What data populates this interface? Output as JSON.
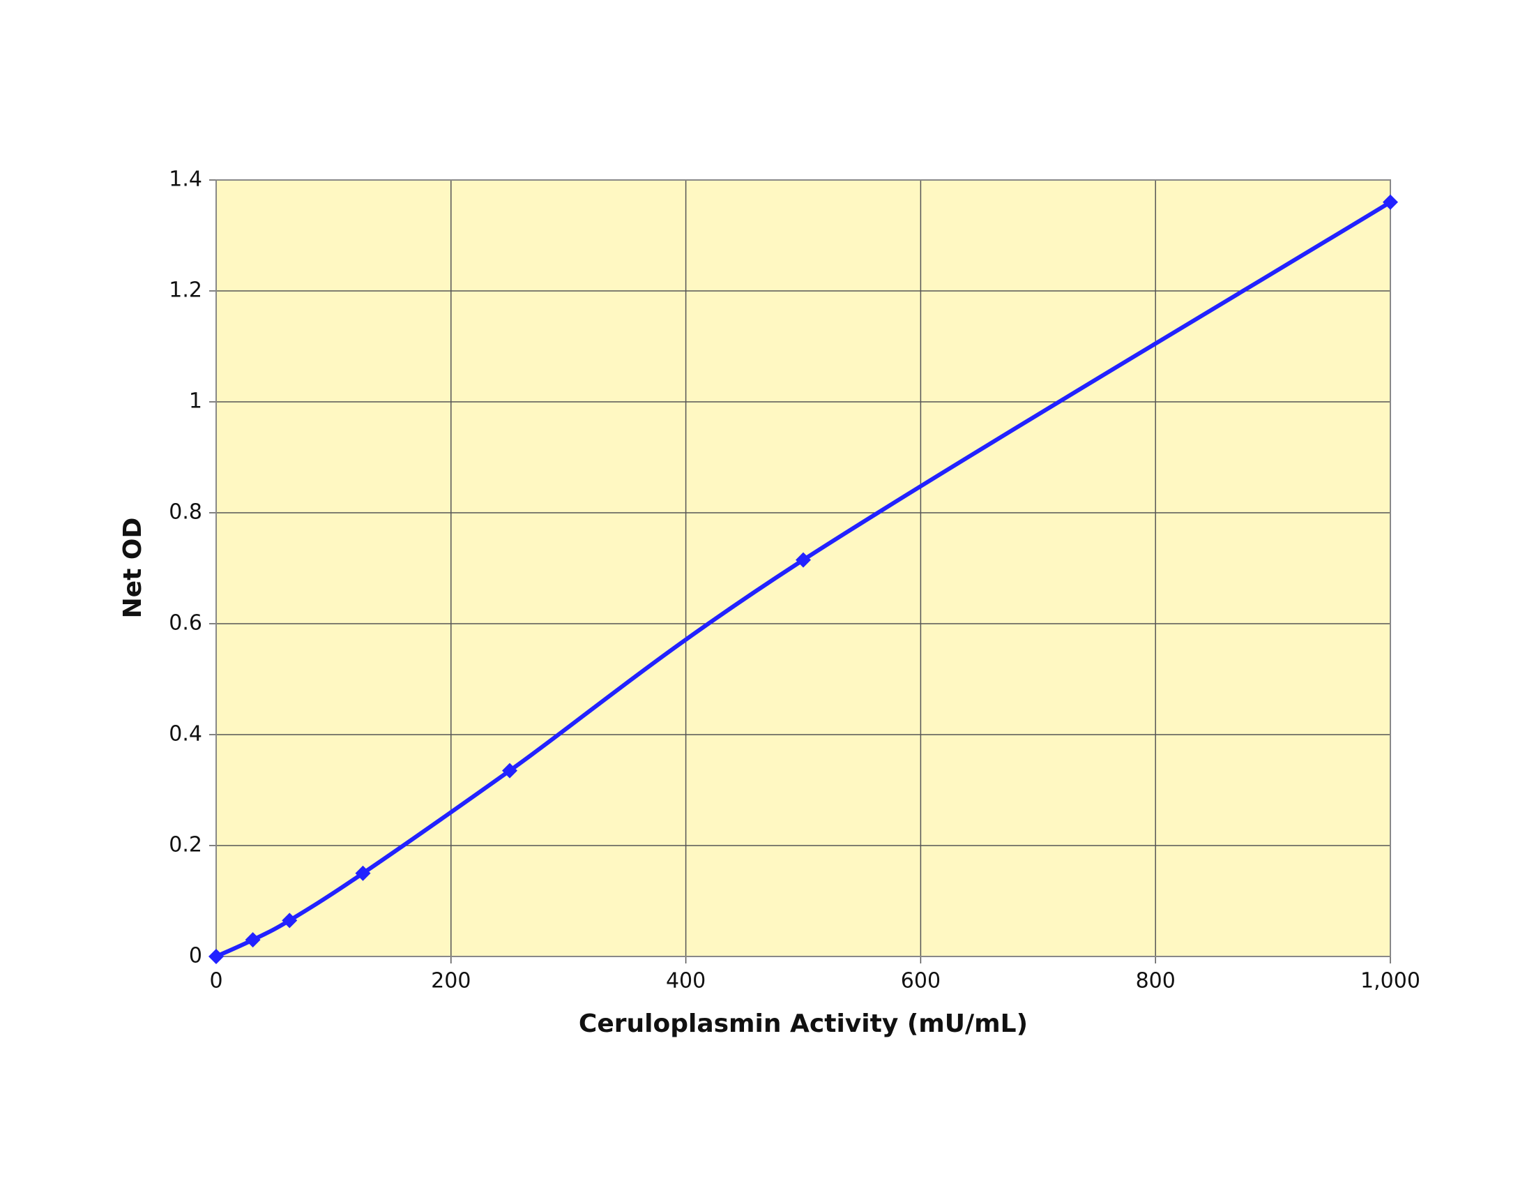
{
  "chart_data": {
    "type": "line",
    "xlabel": "Ceruloplasmin Activity (mU/mL)",
    "ylabel": "Net OD",
    "x": [
      0,
      31.25,
      62.5,
      125,
      250,
      500,
      1000
    ],
    "series": [
      {
        "color": "#2222ff",
        "values": [
          0,
          0.03,
          0.065,
          0.15,
          0.335,
          0.715,
          1.36
        ]
      }
    ],
    "xlim": [
      0,
      1000
    ],
    "xticks": [
      0,
      200,
      400,
      600,
      800,
      {
        "value": 1000,
        "label": "1,000"
      }
    ],
    "ylim": [
      0,
      1.4
    ],
    "yticks": [
      0,
      0.2,
      0.4,
      0.6,
      0.8,
      1,
      1.2,
      1.4
    ],
    "grid": true,
    "background": "#fff8c2"
  }
}
